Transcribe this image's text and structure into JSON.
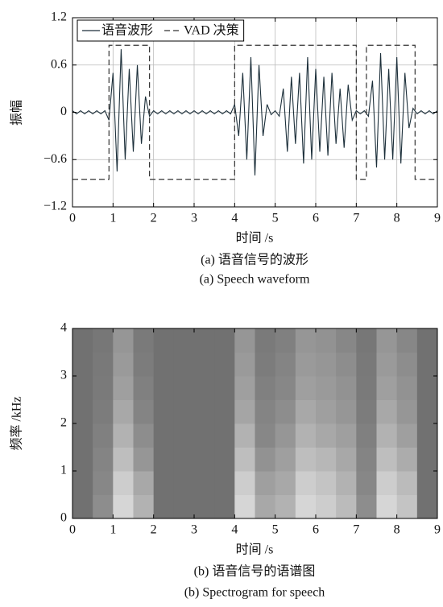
{
  "chart_data": [
    {
      "type": "line",
      "xlabel": "时间 /s",
      "ylabel": "振幅",
      "caption": "(a) 语音信号的波形",
      "caption_en": "(a) Speech waveform",
      "xlim": [
        0,
        9
      ],
      "ylim": [
        -1.2,
        1.2
      ],
      "xticks": [
        0,
        1,
        2,
        3,
        4,
        5,
        6,
        7,
        8,
        9
      ],
      "yticks": [
        {
          "value": -1.2,
          "label": "−1.2"
        },
        {
          "value": -0.6,
          "label": "−0.6"
        },
        0,
        0.6,
        1.2
      ],
      "grid": true,
      "legend": "upper left",
      "series": [
        {
          "name": "语音波形",
          "color": "#1c2f3a",
          "linestyle": "solid",
          "x": [
            0,
            0.1,
            0.2,
            0.3,
            0.4,
            0.5,
            0.6,
            0.7,
            0.8,
            0.9,
            1,
            1.1,
            1.2,
            1.3,
            1.4,
            1.5,
            1.6,
            1.7,
            1.8,
            1.9,
            2,
            2.1,
            2.2,
            2.3,
            2.4,
            2.5,
            2.6,
            2.7,
            2.8,
            2.9,
            3,
            3.1,
            3.2,
            3.3,
            3.4,
            3.5,
            3.6,
            3.7,
            3.8,
            3.9,
            4,
            4.1,
            4.2,
            4.3,
            4.4,
            4.5,
            4.6,
            4.7,
            4.8,
            4.9,
            5,
            5.1,
            5.2,
            5.3,
            5.4,
            5.5,
            5.6,
            5.7,
            5.8,
            5.9,
            6,
            6.1,
            6.2,
            6.3,
            6.4,
            6.5,
            6.6,
            6.7,
            6.8,
            6.9,
            7,
            7.1,
            7.2,
            7.3,
            7.4,
            7.5,
            7.6,
            7.7,
            7.8,
            7.9,
            8,
            8.1,
            8.2,
            8.3,
            8.4,
            8.5,
            8.6,
            8.7,
            8.8,
            8.9,
            9
          ],
          "values": [
            0.02,
            -0.02,
            0.02,
            -0.02,
            0.02,
            -0.02,
            0.02,
            -0.02,
            0.02,
            -0.1,
            0.5,
            -0.75,
            0.8,
            -0.6,
            0.55,
            -0.5,
            0.6,
            -0.4,
            0.2,
            -0.05,
            0.02,
            -0.02,
            0.02,
            -0.02,
            0.02,
            -0.02,
            0.02,
            -0.02,
            0.02,
            -0.02,
            0.02,
            -0.02,
            0.02,
            -0.02,
            0.02,
            -0.02,
            0.02,
            -0.02,
            0.02,
            -0.02,
            0.1,
            -0.3,
            0.5,
            -0.6,
            0.7,
            -0.8,
            0.6,
            -0.3,
            0.1,
            -0.03,
            0.02,
            -0.05,
            0.3,
            -0.5,
            0.45,
            -0.4,
            0.5,
            -0.65,
            0.7,
            -0.6,
            0.55,
            -0.5,
            0.45,
            -0.55,
            0.5,
            -0.4,
            0.3,
            -0.45,
            0.35,
            -0.1,
            0.02,
            -0.02,
            0.02,
            -0.05,
            0.4,
            -0.7,
            0.75,
            -0.6,
            0.55,
            -0.6,
            0.7,
            -0.65,
            0.5,
            -0.2,
            0.05,
            -0.02,
            0.02,
            -0.02,
            0.02,
            -0.02,
            0.02
          ]
        },
        {
          "name": "VAD 决策",
          "color": "#333333",
          "linestyle": "dashed",
          "x": [
            0,
            0.9,
            0.9,
            1.9,
            1.9,
            4.0,
            4.0,
            7.0,
            7.0,
            7.25,
            7.25,
            8.45,
            8.45,
            9
          ],
          "values": [
            -0.85,
            -0.85,
            0.85,
            0.85,
            -0.85,
            -0.85,
            0.85,
            0.85,
            -0.85,
            -0.85,
            0.85,
            0.85,
            -0.85,
            -0.85
          ]
        }
      ]
    },
    {
      "type": "heatmap",
      "xlabel": "时间 /s",
      "ylabel": "频率 /kHz",
      "caption": "(b) 语音信号的语谱图",
      "caption_en": "(b) Spectrogram for speech",
      "xlim": [
        0,
        9
      ],
      "ylim": [
        0,
        4
      ],
      "xticks": [
        0,
        1,
        2,
        3,
        4,
        5,
        6,
        7,
        8,
        9
      ],
      "yticks": [
        0,
        1,
        2,
        3,
        4
      ],
      "colormap": [
        "#3a3a3a",
        "#f2f2f2"
      ],
      "clim": [
        0,
        1
      ],
      "xbins": [
        0,
        0.5,
        1,
        1.5,
        2,
        2.5,
        3,
        3.5,
        4,
        4.5,
        5,
        5.5,
        6,
        6.5,
        7,
        7.5,
        8,
        8.5,
        9
      ],
      "ybins": [
        0,
        0.5,
        1,
        1.5,
        2,
        2.5,
        3,
        3.5,
        4
      ],
      "intensity": [
        [
          0.3,
          0.45,
          0.85,
          0.65,
          0.3,
          0.3,
          0.3,
          0.3,
          0.85,
          0.6,
          0.65,
          0.85,
          0.8,
          0.7,
          0.45,
          0.85,
          0.75,
          0.3
        ],
        [
          0.3,
          0.42,
          0.8,
          0.6,
          0.3,
          0.3,
          0.3,
          0.3,
          0.8,
          0.55,
          0.6,
          0.8,
          0.75,
          0.65,
          0.42,
          0.8,
          0.7,
          0.3
        ],
        [
          0.3,
          0.4,
          0.72,
          0.5,
          0.3,
          0.3,
          0.3,
          0.3,
          0.72,
          0.48,
          0.55,
          0.72,
          0.68,
          0.6,
          0.4,
          0.72,
          0.62,
          0.3
        ],
        [
          0.3,
          0.38,
          0.65,
          0.45,
          0.3,
          0.3,
          0.3,
          0.3,
          0.65,
          0.42,
          0.5,
          0.65,
          0.6,
          0.55,
          0.38,
          0.65,
          0.55,
          0.3
        ],
        [
          0.3,
          0.36,
          0.6,
          0.4,
          0.3,
          0.3,
          0.3,
          0.3,
          0.58,
          0.4,
          0.45,
          0.6,
          0.55,
          0.5,
          0.36,
          0.6,
          0.5,
          0.3
        ],
        [
          0.3,
          0.35,
          0.55,
          0.38,
          0.3,
          0.3,
          0.3,
          0.3,
          0.55,
          0.38,
          0.42,
          0.55,
          0.52,
          0.48,
          0.35,
          0.55,
          0.48,
          0.3
        ],
        [
          0.3,
          0.34,
          0.52,
          0.36,
          0.3,
          0.3,
          0.3,
          0.3,
          0.52,
          0.36,
          0.4,
          0.52,
          0.5,
          0.45,
          0.34,
          0.52,
          0.45,
          0.3
        ],
        [
          0.3,
          0.33,
          0.5,
          0.35,
          0.3,
          0.3,
          0.3,
          0.3,
          0.5,
          0.35,
          0.38,
          0.5,
          0.48,
          0.42,
          0.33,
          0.5,
          0.42,
          0.3
        ]
      ]
    }
  ]
}
